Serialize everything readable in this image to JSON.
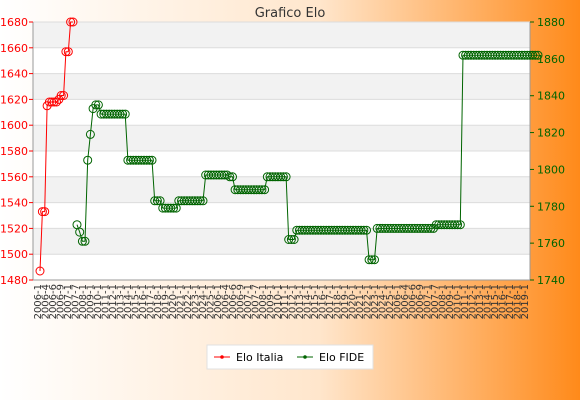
{
  "colors": {
    "bg_left": "#ffffff",
    "bg_right": "#ff8a1a",
    "italia": "#ff0000",
    "fide": "#006400",
    "band": "#f2f2f2",
    "plot": "#ffffff"
  },
  "chart_data": {
    "type": "line",
    "title": "Grafico Elo",
    "y_left": {
      "ticks": [
        1480,
        1500,
        1520,
        1540,
        1560,
        1580,
        1600,
        1620,
        1640,
        1660,
        1680
      ],
      "range": [
        1480,
        1680
      ]
    },
    "y_right": {
      "ticks": [
        1740,
        1760,
        1780,
        1800,
        1820,
        1840,
        1860,
        1880
      ],
      "range": [
        1740,
        1880
      ]
    },
    "x_tick_label_fragments": [
      "2006-1",
      "2006-4",
      "2006-6",
      "2006-9",
      "2007-1",
      "2007-7",
      "2008-1",
      "2009-1",
      "2010-1",
      "2011-1",
      "2012-1",
      "2013-1",
      "2014-1",
      "2015-1",
      "2016-1",
      "2017-1",
      "2018-1",
      "2019-1",
      "2020-1",
      "2021-1",
      "2022-1",
      "2023-1",
      "2024-1",
      "2025-1"
    ],
    "series": [
      {
        "name": "Elo Italia",
        "axis": "left",
        "values": [
          1487,
          1533,
          1533,
          1615,
          1618,
          1618,
          1618,
          1618,
          1620,
          1623,
          1623,
          1657,
          1657,
          1680,
          1680
        ]
      },
      {
        "name": "Elo FIDE",
        "axis": "right",
        "values": [
          1770,
          1766,
          1761,
          1761,
          1805,
          1819,
          1833,
          1835,
          1835,
          1830,
          1830,
          1830,
          1830,
          1830,
          1830,
          1830,
          1830,
          1830,
          1830,
          1805,
          1805,
          1805,
          1805,
          1805,
          1805,
          1805,
          1805,
          1805,
          1805,
          1783,
          1783,
          1783,
          1779,
          1779,
          1779,
          1779,
          1779,
          1779,
          1783,
          1783,
          1783,
          1783,
          1783,
          1783,
          1783,
          1783,
          1783,
          1783,
          1797,
          1797,
          1797,
          1797,
          1797,
          1797,
          1797,
          1797,
          1797,
          1796,
          1796,
          1789,
          1789,
          1789,
          1789,
          1789,
          1789,
          1789,
          1789,
          1789,
          1789,
          1789,
          1789,
          1796,
          1796,
          1796,
          1796,
          1796,
          1796,
          1796,
          1796,
          1762,
          1762,
          1762,
          1767,
          1767,
          1767,
          1767,
          1767,
          1767,
          1767,
          1767,
          1767,
          1767,
          1767,
          1767,
          1767,
          1767,
          1767,
          1767,
          1767,
          1767,
          1767,
          1767,
          1767,
          1767,
          1767,
          1767,
          1767,
          1767,
          1767,
          1751,
          1751,
          1751,
          1768,
          1768,
          1768,
          1768,
          1768,
          1768,
          1768,
          1768,
          1768,
          1768,
          1768,
          1768,
          1768,
          1768,
          1768,
          1768,
          1768,
          1768,
          1768,
          1768,
          1768,
          1768,
          1770,
          1770,
          1770,
          1770,
          1770,
          1770,
          1770,
          1770,
          1770,
          1770,
          1862,
          1862,
          1862,
          1862,
          1862,
          1862,
          1862,
          1862,
          1862,
          1862,
          1862,
          1862,
          1862,
          1862,
          1862,
          1862,
          1862,
          1862,
          1862,
          1862,
          1862,
          1862,
          1862,
          1862,
          1862,
          1862,
          1862,
          1862,
          1862
        ]
      }
    ],
    "legend": {
      "position": "bottom-center",
      "entries": [
        "Elo Italia",
        "Elo FIDE"
      ]
    },
    "grid": true
  }
}
